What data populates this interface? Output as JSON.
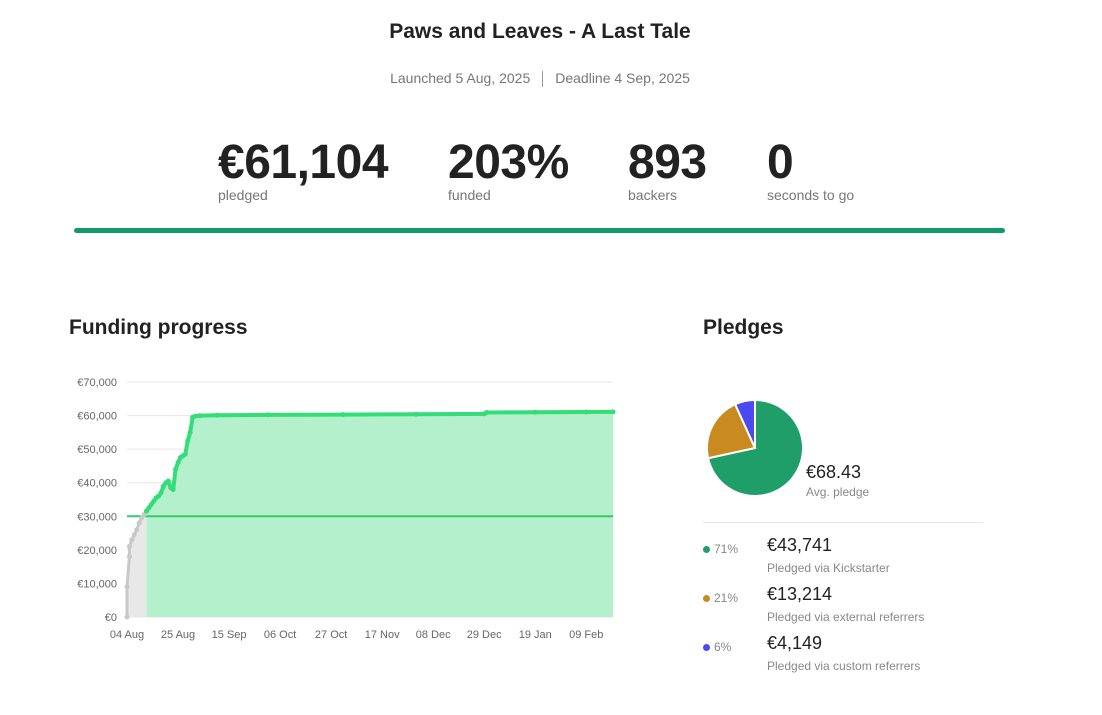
{
  "header": {
    "title": "Paws and Leaves - A Last Tale",
    "launched": "Launched 5 Aug, 2025",
    "deadline": "Deadline 4 Sep, 2025"
  },
  "stats": {
    "pledged": {
      "value": "€61,104",
      "label": "pledged"
    },
    "funded": {
      "value": "203%",
      "label": "funded"
    },
    "backers": {
      "value": "893",
      "label": "backers"
    },
    "time": {
      "value": "0",
      "label": "seconds to go"
    }
  },
  "funding_progress": {
    "title": "Funding progress"
  },
  "pledges": {
    "title": "Pledges",
    "avg_value": "€68.43",
    "avg_label": "Avg. pledge",
    "items": [
      {
        "pct": "71%",
        "amount": "€43,741",
        "label": "Pledged via Kickstarter",
        "color": "#1f9e6a"
      },
      {
        "pct": "21%",
        "amount": "€13,214",
        "label": "Pledged via external referrers",
        "color": "#c98a20"
      },
      {
        "pct": "6%",
        "amount": "€4,149",
        "label": "Pledged via custom referrers",
        "color": "#4a4af0"
      }
    ]
  },
  "colors": {
    "accent": "#119966",
    "line_green": "#33dd77",
    "fill_green": "#b4f0cc",
    "goal_line": "#33cc66",
    "pre_launch_gray": "#c8c8c8"
  },
  "chart_data": [
    {
      "type": "area",
      "ylim": [
        0,
        70000
      ],
      "yticks": [
        "€0",
        "€10,000",
        "€20,000",
        "€30,000",
        "€40,000",
        "€50,000",
        "€60,000",
        "€70,000"
      ],
      "xticks": [
        "04 Aug",
        "25 Aug",
        "15 Sep",
        "06 Oct",
        "27 Oct",
        "17 Nov",
        "08 Dec",
        "29 Dec",
        "19 Jan",
        "09 Feb"
      ],
      "goal": 30000,
      "launch_date": "2025-08-05",
      "series": [
        {
          "points": [
            [
              "2025-08-04",
              0
            ],
            [
              "2025-08-04",
              9000
            ],
            [
              "2025-08-05",
              18000
            ],
            [
              "2025-08-05",
              21000
            ],
            [
              "2025-08-06",
              23000
            ],
            [
              "2025-08-07",
              24500
            ],
            [
              "2025-08-08",
              26000
            ],
            [
              "2025-08-09",
              28000
            ],
            [
              "2025-08-10",
              29500
            ],
            [
              "2025-08-11",
              30500
            ],
            [
              "2025-08-12",
              31500
            ],
            [
              "2025-08-13",
              32500
            ],
            [
              "2025-08-14",
              33500
            ],
            [
              "2025-08-15",
              34500
            ],
            [
              "2025-08-16",
              35500
            ],
            [
              "2025-08-17",
              36000
            ],
            [
              "2025-08-18",
              37000
            ],
            [
              "2025-08-19",
              39000
            ],
            [
              "2025-08-20",
              40000
            ],
            [
              "2025-08-21",
              40500
            ],
            [
              "2025-08-22",
              38500
            ],
            [
              "2025-08-23",
              38000
            ],
            [
              "2025-08-24",
              44000
            ],
            [
              "2025-08-25",
              46000
            ],
            [
              "2025-08-26",
              47500
            ],
            [
              "2025-08-27",
              48000
            ],
            [
              "2025-08-28",
              48500
            ],
            [
              "2025-08-29",
              52500
            ],
            [
              "2025-08-30",
              55000
            ],
            [
              "2025-08-31",
              59500
            ],
            [
              "2025-09-01",
              59800
            ],
            [
              "2025-09-03",
              60000
            ],
            [
              "2025-09-10",
              60100
            ],
            [
              "2025-10-01",
              60200
            ],
            [
              "2025-11-01",
              60300
            ],
            [
              "2025-12-01",
              60400
            ],
            [
              "2025-12-29",
              60500
            ],
            [
              "2025-12-30",
              60900
            ],
            [
              "2026-01-19",
              61000
            ],
            [
              "2026-02-09",
              61050
            ],
            [
              "2026-02-20",
              61104
            ]
          ]
        }
      ]
    },
    {
      "type": "pie",
      "categories": [
        "Pledged via Kickstarter",
        "Pledged via external referrers",
        "Pledged via custom referrers"
      ],
      "values": [
        43741,
        13214,
        4149
      ],
      "colors": [
        "#1f9e6a",
        "#c98a20",
        "#4a4af0"
      ]
    }
  ]
}
